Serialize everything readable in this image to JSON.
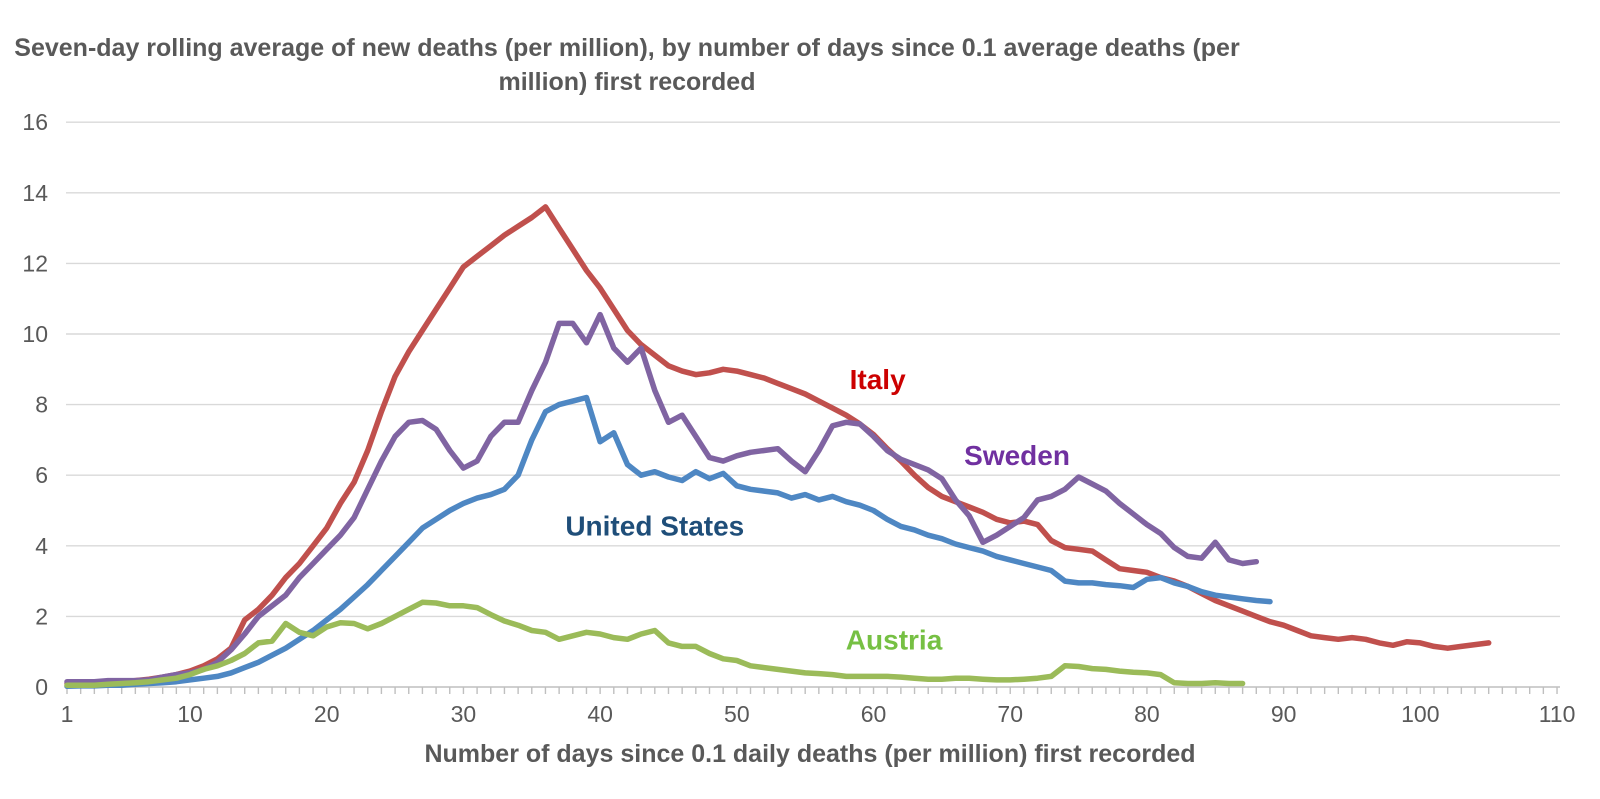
{
  "title": "Seven-day rolling average of new deaths (per million), by number of days since 0.1 average deaths (per million) first recorded",
  "x_axis_title": "Number of days since 0.1 daily deaths (per million) first recorded",
  "chart_data": {
    "type": "line",
    "title": "Seven-day rolling average of new deaths (per million), by number of days since 0.1 average deaths (per million) first recorded",
    "xlabel": "Number of days since 0.1 daily deaths (per million) first recorded",
    "ylabel": "",
    "xlim": [
      1,
      110
    ],
    "ylim": [
      0,
      16
    ],
    "x_tick_labels": [
      1,
      10,
      20,
      30,
      40,
      50,
      60,
      70,
      80,
      90,
      100,
      110
    ],
    "y_tick_labels": [
      0,
      2,
      4,
      6,
      8,
      10,
      12,
      14,
      16
    ],
    "grid": "horizontal",
    "legend_position": "inline-labels",
    "colors": {
      "gridline": "#d9d9d9",
      "axis_line": "#bfbfbf",
      "tick_text": "#595959",
      "title_text": "#595959"
    },
    "series": [
      {
        "name": "Italy",
        "line_color": "#c0504d",
        "label_color": "#cc0000",
        "label_day": 60.3,
        "label_value": 8.7,
        "start_day": 1,
        "values": [
          0.1,
          0.1,
          0.12,
          0.12,
          0.15,
          0.18,
          0.22,
          0.28,
          0.35,
          0.45,
          0.6,
          0.8,
          1.1,
          1.9,
          2.2,
          2.6,
          3.1,
          3.5,
          4.0,
          4.5,
          5.2,
          5.8,
          6.7,
          7.8,
          8.8,
          9.5,
          10.1,
          10.7,
          11.3,
          11.9,
          12.2,
          12.5,
          12.8,
          13.05,
          13.3,
          13.6,
          13.0,
          12.4,
          11.8,
          11.3,
          10.7,
          10.1,
          9.7,
          9.4,
          9.1,
          8.95,
          8.85,
          8.9,
          9.0,
          8.95,
          8.85,
          8.75,
          8.6,
          8.45,
          8.3,
          8.1,
          7.9,
          7.7,
          7.45,
          7.15,
          6.75,
          6.4,
          6.0,
          5.65,
          5.4,
          5.25,
          5.1,
          4.95,
          4.75,
          4.65,
          4.7,
          4.6,
          4.15,
          3.95,
          3.9,
          3.85,
          3.6,
          3.35,
          3.3,
          3.25,
          3.1,
          3.0,
          2.85,
          2.65,
          2.45,
          2.3,
          2.15,
          2.0,
          1.85,
          1.75,
          1.6,
          1.45,
          1.4,
          1.35,
          1.4,
          1.35,
          1.25,
          1.18,
          1.28,
          1.25,
          1.15,
          1.1,
          1.15,
          1.2,
          1.25
        ]
      },
      {
        "name": "Sweden",
        "line_color": "#8064a2",
        "label_color": "#7030a0",
        "label_day": 70.5,
        "label_value": 6.55,
        "start_day": 1,
        "values": [
          0.15,
          0.15,
          0.15,
          0.18,
          0.18,
          0.18,
          0.2,
          0.28,
          0.35,
          0.4,
          0.5,
          0.7,
          1.05,
          1.5,
          2.0,
          2.3,
          2.6,
          3.1,
          3.5,
          3.9,
          4.3,
          4.8,
          5.6,
          6.4,
          7.1,
          7.5,
          7.55,
          7.3,
          6.7,
          6.2,
          6.4,
          7.1,
          7.5,
          7.5,
          8.4,
          9.2,
          10.3,
          10.3,
          9.75,
          10.55,
          9.6,
          9.2,
          9.6,
          8.4,
          7.5,
          7.7,
          7.1,
          6.5,
          6.4,
          6.55,
          6.65,
          6.7,
          6.75,
          6.4,
          6.1,
          6.7,
          7.4,
          7.5,
          7.45,
          7.1,
          6.7,
          6.45,
          6.3,
          6.15,
          5.9,
          5.3,
          4.85,
          4.1,
          4.3,
          4.55,
          4.8,
          5.3,
          5.4,
          5.6,
          5.95,
          5.75,
          5.55,
          5.2,
          4.9,
          4.6,
          4.35,
          3.95,
          3.7,
          3.65,
          4.1,
          3.6,
          3.5,
          3.55
        ]
      },
      {
        "name": "United States",
        "line_color": "#4e87c3",
        "label_color": "#1f4e79",
        "label_day": 44.0,
        "label_value": 4.55,
        "start_day": 1,
        "values": [
          0.02,
          0.03,
          0.03,
          0.05,
          0.05,
          0.08,
          0.1,
          0.12,
          0.15,
          0.2,
          0.25,
          0.3,
          0.4,
          0.55,
          0.7,
          0.9,
          1.1,
          1.35,
          1.6,
          1.9,
          2.2,
          2.55,
          2.9,
          3.3,
          3.7,
          4.1,
          4.5,
          4.75,
          5.0,
          5.2,
          5.35,
          5.45,
          5.6,
          6.0,
          7.0,
          7.8,
          8.0,
          8.1,
          8.2,
          6.95,
          7.2,
          6.3,
          6.0,
          6.1,
          5.95,
          5.85,
          6.1,
          5.9,
          6.05,
          5.7,
          5.6,
          5.55,
          5.5,
          5.35,
          5.45,
          5.3,
          5.4,
          5.25,
          5.15,
          5.0,
          4.75,
          4.55,
          4.45,
          4.3,
          4.2,
          4.05,
          3.95,
          3.85,
          3.7,
          3.6,
          3.5,
          3.4,
          3.3,
          3.0,
          2.95,
          2.95,
          2.9,
          2.87,
          2.82,
          3.05,
          3.1,
          2.95,
          2.85,
          2.7,
          2.6,
          2.55,
          2.5,
          2.45,
          2.42
        ]
      },
      {
        "name": "Austria",
        "line_color": "#9bbb59",
        "label_color": "#76c043",
        "label_day": 61.5,
        "label_value": 1.32,
        "start_day": 1,
        "values": [
          0.05,
          0.05,
          0.05,
          0.08,
          0.1,
          0.12,
          0.15,
          0.2,
          0.25,
          0.35,
          0.5,
          0.6,
          0.75,
          0.95,
          1.25,
          1.3,
          1.8,
          1.55,
          1.45,
          1.7,
          1.82,
          1.8,
          1.65,
          1.8,
          2.0,
          2.2,
          2.4,
          2.38,
          2.3,
          2.3,
          2.25,
          2.05,
          1.87,
          1.75,
          1.6,
          1.55,
          1.35,
          1.45,
          1.55,
          1.5,
          1.4,
          1.35,
          1.5,
          1.6,
          1.25,
          1.15,
          1.15,
          0.95,
          0.8,
          0.75,
          0.6,
          0.55,
          0.5,
          0.45,
          0.4,
          0.38,
          0.35,
          0.3,
          0.3,
          0.3,
          0.3,
          0.28,
          0.25,
          0.22,
          0.22,
          0.25,
          0.25,
          0.22,
          0.2,
          0.2,
          0.22,
          0.25,
          0.3,
          0.6,
          0.58,
          0.52,
          0.5,
          0.45,
          0.42,
          0.4,
          0.35,
          0.12,
          0.1,
          0.1,
          0.12,
          0.1,
          0.1
        ]
      }
    ]
  }
}
